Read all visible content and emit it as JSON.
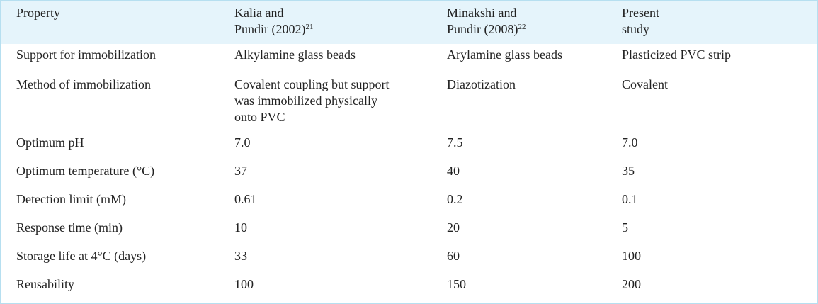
{
  "table": {
    "header": [
      {
        "lines": [
          "Property"
        ]
      },
      {
        "lines": [
          "Kalia and",
          "Pundir (2002)"
        ],
        "ref": "21"
      },
      {
        "lines": [
          "Minakshi and",
          "Pundir (2008)"
        ],
        "ref": "22"
      },
      {
        "lines": [
          "Present",
          "study"
        ]
      }
    ],
    "rows": [
      [
        [
          "Support for immobilization"
        ],
        [
          "Alkylamine glass beads"
        ],
        [
          "Arylamine glass beads"
        ],
        [
          "Plasticized PVC strip"
        ]
      ],
      [
        [
          "Method of immobilization"
        ],
        [
          "Covalent coupling but support",
          "was immobilized physically",
          "onto PVC"
        ],
        [
          "Diazotization"
        ],
        [
          "Covalent"
        ]
      ],
      [
        [
          "Optimum pH"
        ],
        [
          "7.0"
        ],
        [
          "7.5"
        ],
        [
          "7.0"
        ]
      ],
      [
        [
          "Optimum temperature (°C)"
        ],
        [
          "37"
        ],
        [
          "40"
        ],
        [
          "35"
        ]
      ],
      [
        [
          "Detection limit (mM)"
        ],
        [
          "0.61"
        ],
        [
          "0.2"
        ],
        [
          "0.1"
        ]
      ],
      [
        [
          "Response time (min)"
        ],
        [
          "10"
        ],
        [
          "20"
        ],
        [
          "5"
        ]
      ],
      [
        [
          "Storage life at 4°C (days)"
        ],
        [
          "33"
        ],
        [
          "60"
        ],
        [
          "100"
        ]
      ],
      [
        [
          "Reusability"
        ],
        [
          "100"
        ],
        [
          "150"
        ],
        [
          "200"
        ]
      ]
    ]
  }
}
